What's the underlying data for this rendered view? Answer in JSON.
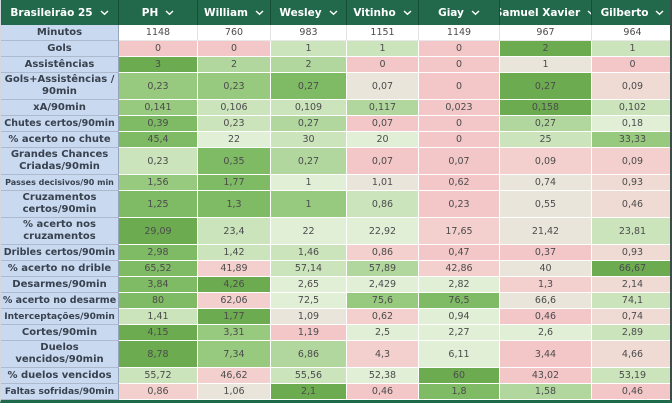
{
  "table": {
    "header": {
      "title": "Brasileirão 25",
      "columns": [
        "PH",
        "William",
        "Wesley",
        "Vitinho",
        "Giay",
        "Samuel Xavier",
        "Gilberto"
      ]
    },
    "colors": {
      "header_bg": "#21694a",
      "header_separator": "#174f37",
      "label_bg": "#c9d9f0",
      "bottom_bar": "#1f6a4b"
    },
    "palette": {
      "w": "#ffffff",
      "n": "#e9e5da",
      "g1": "#e1efd7",
      "g2": "#cbe4bc",
      "g3": "#b1d79e",
      "g4": "#97c97f",
      "g5": "#7fba64",
      "g6": "#6cab50",
      "p1": "#efdbd4",
      "p2": "#f3d0ce",
      "p3": "#f3c6c8"
    },
    "rows": [
      {
        "label": "Minutos",
        "values": [
          "1148",
          "760",
          "983",
          "1151",
          "1149",
          "967",
          "964"
        ],
        "colors": [
          "w",
          "w",
          "w",
          "w",
          "w",
          "w",
          "w"
        ]
      },
      {
        "label": "Gols",
        "values": [
          "0",
          "0",
          "1",
          "1",
          "0",
          "2",
          "1"
        ],
        "colors": [
          "p3",
          "p3",
          "g2",
          "g2",
          "p3",
          "g6",
          "g2"
        ]
      },
      {
        "label": "Assistências",
        "values": [
          "3",
          "2",
          "2",
          "0",
          "0",
          "1",
          "0"
        ],
        "colors": [
          "g6",
          "g3",
          "g3",
          "p3",
          "p3",
          "n",
          "p3"
        ]
      },
      {
        "label": "Gols+Assistências /\n90min",
        "values": [
          "0,23",
          "0,23",
          "0,27",
          "0,07",
          "0",
          "0,27",
          "0,09"
        ],
        "colors": [
          "g4",
          "g4",
          "g5",
          "n",
          "p3",
          "g6",
          "p1"
        ]
      },
      {
        "label": "xA/90min",
        "values": [
          "0,141",
          "0,106",
          "0,109",
          "0,117",
          "0,023",
          "0,158",
          "0,102"
        ],
        "colors": [
          "g4",
          "g2",
          "g2",
          "g3",
          "p3",
          "g6",
          "g2"
        ]
      },
      {
        "label": "Chutes certos/90min",
        "values": [
          "0,39",
          "0,23",
          "0,27",
          "0,07",
          "0",
          "0,27",
          "0,18"
        ],
        "colors": [
          "g5",
          "g2",
          "g3",
          "p3",
          "p3",
          "g3",
          "g1"
        ]
      },
      {
        "label": "% acerto no chute",
        "values": [
          "45,4",
          "22",
          "30",
          "20",
          "0",
          "25",
          "33,33"
        ],
        "colors": [
          "g5",
          "g1",
          "g2",
          "g1",
          "p3",
          "g2",
          "g4"
        ]
      },
      {
        "label": "Grandes Chances\nCriadas/90min",
        "values": [
          "0,23",
          "0,35",
          "0,27",
          "0,07",
          "0,07",
          "0,09",
          "0,09"
        ],
        "colors": [
          "g2",
          "g5",
          "g3",
          "p3",
          "p3",
          "p2",
          "p2"
        ]
      },
      {
        "label": "Passes decisivos/90 min",
        "values": [
          "1,56",
          "1,77",
          "1",
          "1,01",
          "0,62",
          "0,74",
          "0,93"
        ],
        "colors": [
          "g4",
          "g5",
          "g1",
          "n",
          "p3",
          "n",
          "p1"
        ]
      },
      {
        "label": "Cruzamentos\ncertos/90min",
        "values": [
          "1,25",
          "1,3",
          "1",
          "0,86",
          "0,23",
          "0,55",
          "0,46"
        ],
        "colors": [
          "g5",
          "g5",
          "g4",
          "g2",
          "p3",
          "n",
          "p1"
        ]
      },
      {
        "label": "% acerto nos\ncruzamentos",
        "values": [
          "29,09",
          "23,4",
          "22",
          "22,92",
          "17,65",
          "21,42",
          "23,81"
        ],
        "colors": [
          "g6",
          "g2",
          "g1",
          "g1",
          "p2",
          "n",
          "g2"
        ]
      },
      {
        "label": "Dribles certos/90min",
        "values": [
          "2,98",
          "1,42",
          "1,46",
          "0,86",
          "0,47",
          "0,37",
          "0,93"
        ],
        "colors": [
          "g5",
          "g2",
          "g2",
          "p2",
          "p3",
          "p3",
          "p1"
        ]
      },
      {
        "label": "% acerto no drible",
        "values": [
          "65,52",
          "41,89",
          "57,14",
          "57,89",
          "42,86",
          "40",
          "66,67"
        ],
        "colors": [
          "g5",
          "p2",
          "g2",
          "g3",
          "p2",
          "n",
          "g6"
        ]
      },
      {
        "label": "Desarmes/90min",
        "values": [
          "3,84",
          "4,26",
          "2,65",
          "2,429",
          "2,82",
          "1,3",
          "2,14"
        ],
        "colors": [
          "g5",
          "g6",
          "g1",
          "g1",
          "g1",
          "p2",
          "p1"
        ]
      },
      {
        "label": "% acerto no desarme",
        "values": [
          "80",
          "62,06",
          "72,5",
          "75,6",
          "76,5",
          "66,6",
          "74,1"
        ],
        "colors": [
          "g5",
          "p2",
          "g1",
          "g4",
          "g5",
          "n",
          "g2"
        ]
      },
      {
        "label": "Interceptações/90min",
        "values": [
          "1,41",
          "1,77",
          "1,09",
          "0,62",
          "0,94",
          "0,46",
          "0,74"
        ],
        "colors": [
          "g2",
          "g6",
          "n",
          "p2",
          "g1",
          "p3",
          "p1"
        ]
      },
      {
        "label": "Cortes/90min",
        "values": [
          "4,15",
          "3,31",
          "1,19",
          "2,5",
          "2,27",
          "2,6",
          "2,89"
        ],
        "colors": [
          "g6",
          "g4",
          "p3",
          "g1",
          "g1",
          "g1",
          "g2"
        ]
      },
      {
        "label": "Duelos\nvencidos/90min",
        "values": [
          "8,78",
          "7,34",
          "6,86",
          "4,3",
          "6,11",
          "3,44",
          "4,66"
        ],
        "colors": [
          "g6",
          "g4",
          "g3",
          "p2",
          "g1",
          "p3",
          "p1"
        ]
      },
      {
        "label": "% duelos vencidos",
        "values": [
          "55,72",
          "46,62",
          "55,56",
          "52,38",
          "60",
          "43,02",
          "53,19"
        ],
        "colors": [
          "g2",
          "p2",
          "g2",
          "g1",
          "g6",
          "p3",
          "g2"
        ]
      },
      {
        "label": "Faltas sofridas/90min",
        "values": [
          "0,86",
          "1,06",
          "2,1",
          "0,46",
          "1,8",
          "1,58",
          "0,46"
        ],
        "colors": [
          "p2",
          "n",
          "g6",
          "p3",
          "g5",
          "g3",
          "p3"
        ]
      }
    ]
  }
}
